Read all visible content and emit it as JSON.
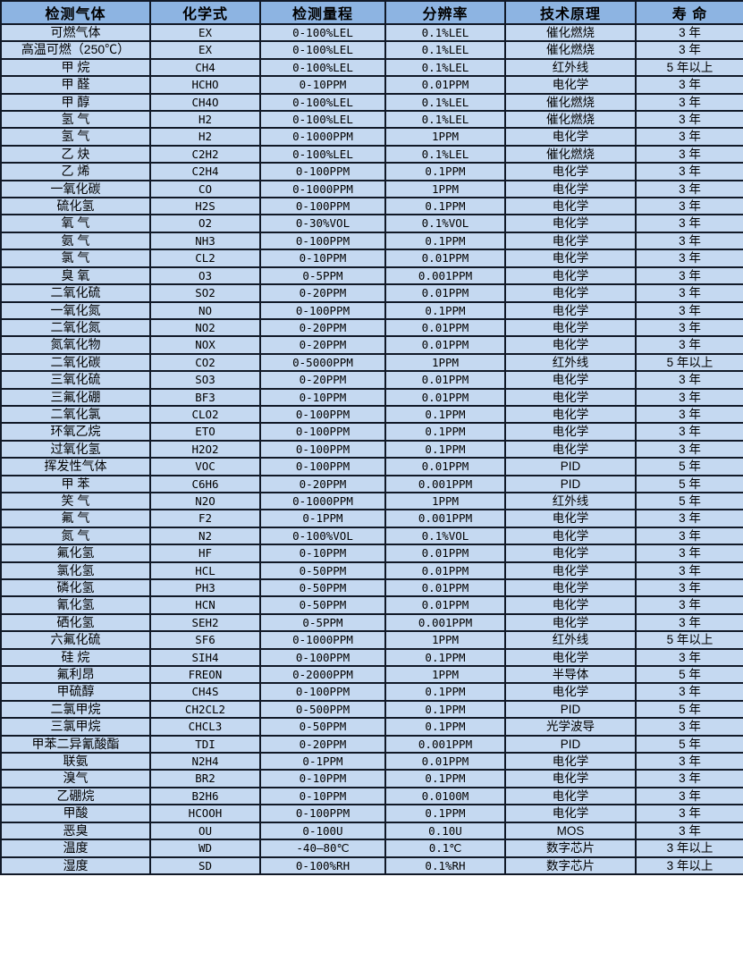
{
  "table": {
    "columns": [
      "检测气体",
      "化学式",
      "检测量程",
      "分辨率",
      "技术原理",
      "寿 命"
    ],
    "rows": [
      [
        "可燃气体",
        "EX",
        "0-100%LEL",
        "0.1%LEL",
        "催化燃烧",
        "3 年"
      ],
      [
        "高温可燃（250℃）",
        "EX",
        "0-100%LEL",
        "0.1%LEL",
        "催化燃烧",
        "3 年"
      ],
      [
        "甲 烷",
        "CH4",
        "0-100%LEL",
        "0.1%LEL",
        "红外线",
        "5 年以上"
      ],
      [
        "甲 醛",
        "HCHO",
        "0-10PPM",
        "0.01PPM",
        "电化学",
        "3 年"
      ],
      [
        "甲 醇",
        "CH4O",
        "0-100%LEL",
        "0.1%LEL",
        "催化燃烧",
        "3 年"
      ],
      [
        "氢 气",
        "H2",
        "0-100%LEL",
        "0.1%LEL",
        "催化燃烧",
        "3 年"
      ],
      [
        "氢 气",
        "H2",
        "0-1000PPM",
        "1PPM",
        "电化学",
        "3 年"
      ],
      [
        "乙 炔",
        "C2H2",
        "0-100%LEL",
        "0.1%LEL",
        "催化燃烧",
        "3 年"
      ],
      [
        "乙 烯",
        "C2H4",
        "0-100PPM",
        "0.1PPM",
        "电化学",
        "3 年"
      ],
      [
        "一氧化碳",
        "CO",
        "0-1000PPM",
        "1PPM",
        "电化学",
        "3 年"
      ],
      [
        "硫化氢",
        "H2S",
        "0-100PPM",
        "0.1PPM",
        "电化学",
        "3 年"
      ],
      [
        "氧 气",
        "O2",
        "0-30%VOL",
        "0.1%VOL",
        "电化学",
        "3 年"
      ],
      [
        "氨 气",
        "NH3",
        "0-100PPM",
        "0.1PPM",
        "电化学",
        "3 年"
      ],
      [
        "氯 气",
        "CL2",
        "0-10PPM",
        "0.01PPM",
        "电化学",
        "3 年"
      ],
      [
        "臭 氧",
        "O3",
        "0-5PPM",
        "0.001PPM",
        "电化学",
        "3 年"
      ],
      [
        "二氧化硫",
        "SO2",
        "0-20PPM",
        "0.01PPM",
        "电化学",
        "3 年"
      ],
      [
        "一氧化氮",
        "NO",
        "0-100PPM",
        "0.1PPM",
        "电化学",
        "3 年"
      ],
      [
        "二氧化氮",
        "NO2",
        "0-20PPM",
        "0.01PPM",
        "电化学",
        "3 年"
      ],
      [
        "氮氧化物",
        "NOX",
        "0-20PPM",
        "0.01PPM",
        "电化学",
        "3 年"
      ],
      [
        "二氧化碳",
        "CO2",
        "0-5000PPM",
        "1PPM",
        "红外线",
        "5 年以上"
      ],
      [
        "三氧化硫",
        "SO3",
        "0-20PPM",
        "0.01PPM",
        "电化学",
        "3 年"
      ],
      [
        "三氟化硼",
        "BF3",
        "0-10PPM",
        "0.01PPM",
        "电化学",
        "3 年"
      ],
      [
        "二氧化氯",
        "CLO2",
        "0-100PPM",
        "0.1PPM",
        "电化学",
        "3 年"
      ],
      [
        "环氧乙烷",
        "ETO",
        "0-100PPM",
        "0.1PPM",
        "电化学",
        "3 年"
      ],
      [
        "过氧化氢",
        "H2O2",
        "0-100PPM",
        "0.1PPM",
        "电化学",
        "3 年"
      ],
      [
        "挥发性气体",
        "VOC",
        "0-100PPM",
        "0.01PPM",
        "PID",
        "5 年"
      ],
      [
        "甲 苯",
        "C6H6",
        "0-20PPM",
        "0.001PPM",
        "PID",
        "5 年"
      ],
      [
        "笑 气",
        "N2O",
        "0-1000PPM",
        "1PPM",
        "红外线",
        "5 年"
      ],
      [
        "氟 气",
        "F2",
        "0-1PPM",
        "0.001PPM",
        "电化学",
        "3 年"
      ],
      [
        "氮 气",
        "N2",
        "0-100%VOL",
        "0.1%VOL",
        "电化学",
        "3 年"
      ],
      [
        "氟化氢",
        "HF",
        "0-10PPM",
        "0.01PPM",
        "电化学",
        "3 年"
      ],
      [
        "氯化氢",
        "HCL",
        "0-50PPM",
        "0.01PPM",
        "电化学",
        "3 年"
      ],
      [
        "磷化氢",
        "PH3",
        "0-50PPM",
        "0.01PPM",
        "电化学",
        "3 年"
      ],
      [
        "氰化氢",
        "HCN",
        "0-50PPM",
        "0.01PPM",
        "电化学",
        "3 年"
      ],
      [
        "硒化氢",
        "SEH2",
        "0-5PPM",
        "0.001PPM",
        "电化学",
        "3 年"
      ],
      [
        "六氟化硫",
        "SF6",
        "0-1000PPM",
        "1PPM",
        "红外线",
        "5 年以上"
      ],
      [
        "硅 烷",
        "SIH4",
        "0-100PPM",
        "0.1PPM",
        "电化学",
        "3 年"
      ],
      [
        "氟利昂",
        "FREON",
        "0-2000PPM",
        "1PPM",
        "半导体",
        "5 年"
      ],
      [
        "甲硫醇",
        "CH4S",
        "0-100PPM",
        "0.1PPM",
        "电化学",
        "3 年"
      ],
      [
        "二氯甲烷",
        "CH2CL2",
        "0-500PPM",
        "0.1PPM",
        "PID",
        "5 年"
      ],
      [
        "三氯甲烷",
        "CHCL3",
        "0-50PPM",
        "0.1PPM",
        "光学波导",
        "3 年"
      ],
      [
        "甲苯二异氰酸酯",
        "TDI",
        "0-20PPM",
        "0.001PPM",
        "PID",
        "5 年"
      ],
      [
        "联氨",
        "N2H4",
        "0-1PPM",
        "0.01PPM",
        "电化学",
        "3 年"
      ],
      [
        "溴气",
        "BR2",
        "0-10PPM",
        "0.1PPM",
        "电化学",
        "3 年"
      ],
      [
        "乙硼烷",
        "B2H6",
        "0-10PPM",
        "0.0100M",
        "电化学",
        "3 年"
      ],
      [
        "甲酸",
        "HCOOH",
        "0-100PPM",
        "0.1PPM",
        "电化学",
        "3 年"
      ],
      [
        "恶臭",
        "OU",
        "0-100U",
        "0.10U",
        "MOS",
        "3 年"
      ],
      [
        "温度",
        "WD",
        "-40—80℃",
        "0.1℃",
        "数字芯片",
        "3 年以上"
      ],
      [
        "湿度",
        "SD",
        "0-100%RH",
        "0.1%RH",
        "数字芯片",
        "3 年以上"
      ]
    ]
  },
  "colors": {
    "header_bg": "#8db4e2",
    "row_bg": "#c5d9f1",
    "border": "#111927",
    "text": "#000000"
  }
}
